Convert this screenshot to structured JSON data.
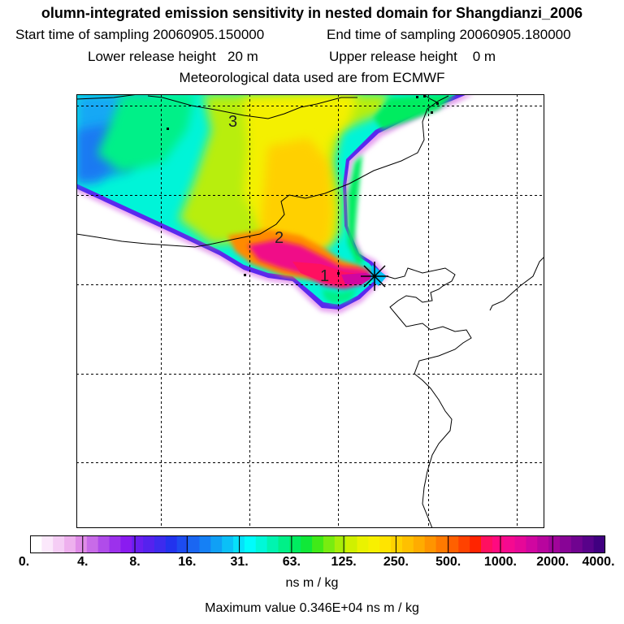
{
  "header": {
    "title": "olumn-integrated emission sensitivity in nested domain for Shangdianzi_2006",
    "start_label": "Start time of sampling 20060905.150000",
    "end_label": "End time of sampling 20060905.180000",
    "lower_label": "Lower release height",
    "lower_value": "20 m",
    "upper_label": "Upper release height",
    "upper_value": "0 m",
    "met_label": "Meteorological data used are from ECMWF"
  },
  "map": {
    "track_labels": [
      "1",
      "2",
      "3"
    ],
    "receptor_marker": "cross"
  },
  "colorbar": {
    "tick_labels": [
      "0.",
      "4.",
      "8.",
      "16.",
      "31.",
      "63.",
      "125.",
      "250.",
      "500.",
      "1000.",
      "2000.",
      "4000."
    ],
    "colors": [
      "#ffffff",
      "#fbe8fb",
      "#f5cdf5",
      "#eeb0ee",
      "#e08ce8",
      "#c86be8",
      "#b04cea",
      "#9c31ec",
      "#8a1bf0",
      "#6a1ef0",
      "#5522ee",
      "#3d2bee",
      "#2233ee",
      "#1d4cf0",
      "#1a66f2",
      "#1580f5",
      "#10a0f5",
      "#0bc0f7",
      "#06e0fa",
      "#00fcfc",
      "#00f8d8",
      "#00f4b0",
      "#00f088",
      "#00ec60",
      "#10e838",
      "#40ea18",
      "#78ec10",
      "#a8ee08",
      "#d0f000",
      "#eaf200",
      "#f8f000",
      "#ffe400",
      "#ffd200",
      "#ffc000",
      "#ffac00",
      "#ff9400",
      "#ff7a00",
      "#ff6000",
      "#ff4200",
      "#ff2400",
      "#ff1060",
      "#ff0a80",
      "#f50a90",
      "#e60898",
      "#d006a0",
      "#b8059e",
      "#a0049a",
      "#880496",
      "#700390",
      "#58028a",
      "#400080"
    ],
    "units": "ns m / kg",
    "max_text": "Maximum value  0.346E+04 ns m / kg"
  }
}
